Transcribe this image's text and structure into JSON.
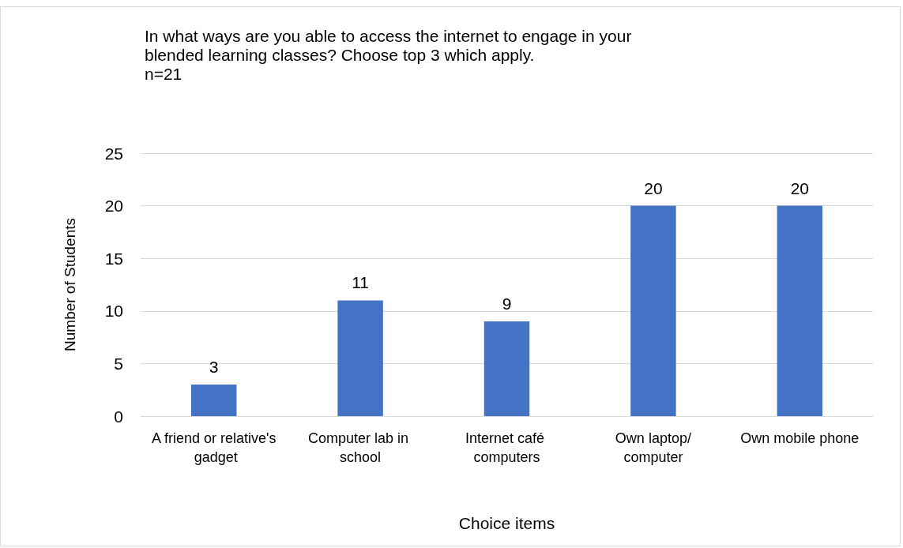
{
  "chart_data": {
    "type": "bar",
    "title": "In what ways are you able to access the internet to engage in your\nblended learning classes? Choose top 3 which apply.",
    "subtitle": "n=21",
    "xlabel": "Choice items",
    "ylabel": "Number of Students",
    "categories": [
      "A friend or relative's gadget",
      "Computer lab in school",
      "Internet café computers",
      "Own laptop/computer",
      "Own mobile phone"
    ],
    "values": [
      3,
      11,
      9,
      20,
      20
    ],
    "color": "#4472c4",
    "ylim": [
      0,
      25
    ],
    "yticks": [
      0,
      5,
      10,
      15,
      20,
      25
    ],
    "grid": "y",
    "data_labels": true
  }
}
